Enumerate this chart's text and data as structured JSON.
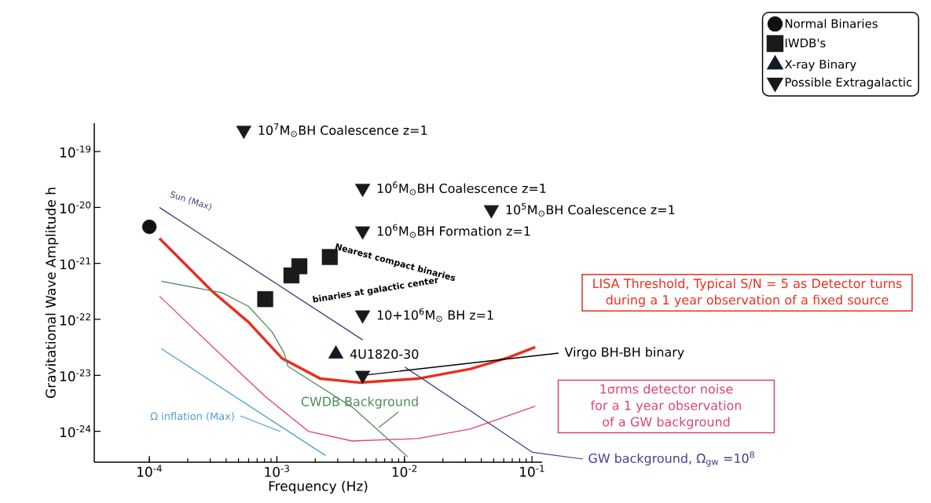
{
  "chart_data": {
    "type": "line",
    "xlabel": "Frequency (Hz)",
    "ylabel": "Gravitational Wave Amplitude h",
    "log": "xy",
    "legend": "top right",
    "xlim": [
      3.7e-05,
      0.12
    ],
    "ylim": [
      2.8e-25,
      3.2e-19
    ],
    "xticks": [
      {
        "value": 0.0001,
        "label": "10$^{-4}$"
      },
      {
        "value": 0.001,
        "label": "10$^{-3}$"
      },
      {
        "value": 0.01,
        "label": "10$^{-2}$"
      },
      {
        "value": 0.1,
        "label": "10$^{-1}$"
      }
    ],
    "yticks": [
      {
        "value": 1e-24,
        "label": "10$^{-24}$"
      },
      {
        "value": 1e-23,
        "label": "10$^{-23}$"
      },
      {
        "value": 1e-22,
        "label": "10$^{-22}$"
      },
      {
        "value": 1e-21,
        "label": "10$^{-21}$"
      },
      {
        "value": 1e-20,
        "label": "10$^{-20}$"
      },
      {
        "value": 1e-19,
        "label": "10$^{-19}$"
      }
    ],
    "series": [
      {
        "name": "Normal Binaries",
        "type": "scatter",
        "marker": "circle",
        "color": "#111111",
        "x": [
          0.0001
        ],
        "values": [
          4.5e-21
        ]
      },
      {
        "name": "IWDB's",
        "type": "scatter",
        "marker": "square",
        "color": "#1a1a1a",
        "x": [
          0.00081,
          0.0013,
          0.0015,
          0.0026
        ],
        "values": [
          2.3e-22,
          6.1e-22,
          8.9e-22,
          1.3e-21
        ]
      },
      {
        "name": "X-ray Binary",
        "type": "scatter",
        "marker": "triangle",
        "color": "#111827",
        "x": [
          0.0029
        ],
        "values": [
          2.4e-23
        ]
      },
      {
        "name": "Possible Extragalactic",
        "type": "scatter",
        "marker": "triangle_down",
        "color": "#1a1a1a",
        "x": [
          0.00055,
          0.0047,
          0.048,
          0.0047,
          0.0047,
          0.0047
        ],
        "values": [
          2.4e-19,
          2.2e-20,
          9.1e-21,
          3.8e-21,
          1.2e-22,
          1e-23
        ]
      },
      {
        "name": "LISA Threshold, Typical S/N = 5 as Detector turns during a 1 year observation of a fixed source",
        "marker": "none",
        "line_style": "solid",
        "color": "#e8301e",
        "x": [
          0.00012,
          0.00031,
          0.0006,
          0.0011,
          0.0022,
          0.0045,
          0.0127,
          0.033,
          0.066,
          0.106
        ],
        "values": [
          2.8e-21,
          3.2e-22,
          8.9e-23,
          2e-23,
          8.7e-24,
          7.4e-24,
          8.7e-24,
          1.3e-23,
          2.1e-23,
          3.2e-23
        ]
      },
      {
        "name": "1σrms detector noise for a 1 year observation of a GW background",
        "marker": "none",
        "line_style": "solid",
        "color": "#d9437a",
        "x": [
          0.00012,
          0.00041,
          0.00083,
          0.00176,
          0.0039,
          0.0127,
          0.033,
          0.106
        ],
        "values": [
          2.6e-22,
          1.8e-23,
          4e-24,
          1e-24,
          6.7e-25,
          7.4e-25,
          1.1e-24,
          2.8e-24
        ]
      },
      {
        "name": "Sun (Max)",
        "marker": "none",
        "line_style": "solid",
        "color": "#4b3a7a",
        "x": [
          0.00012,
          0.0047
        ],
        "values": [
          1e-20,
          4.3e-23
        ]
      },
      {
        "name": "GW background, Ω$_{gw}$ =10$^{8}$",
        "marker": "none",
        "line_style": "solid",
        "color": "#4a3d8f",
        "x": [
          0.0101,
          0.101
        ],
        "values": [
          1.4e-23,
          4.2e-25
        ]
      },
      {
        "name": "CWDB Background",
        "marker": "none",
        "line_style": "solid",
        "color": "#4f8a5a",
        "x": [
          0.000124,
          0.00037,
          0.0006,
          0.00092,
          0.00114,
          0.00122,
          0.0039,
          0.0106
        ],
        "values": [
          4.8e-22,
          3e-22,
          1.7e-22,
          5.9e-23,
          2.5e-23,
          1.45e-23,
          2.7e-24,
          3.5e-25
        ]
      },
      {
        "name": "Ω inflation (Max)",
        "marker": "none",
        "line_style": "solid",
        "color": "#4a9fd0",
        "x": [
          0.000124,
          0.0024
        ],
        "values": [
          3e-23,
          3.7e-25
        ]
      }
    ],
    "annotations": [
      {
        "text": "10$^{7}$M$_{⊙}$BH  Coalescence  z=1",
        "x": 0.00055,
        "y": 2.4e-19
      },
      {
        "text": "10$^{6}$M$_{⊙}$BH  Coalescence  z=1",
        "x": 0.0047,
        "y": 2.2e-20
      },
      {
        "text": "10$^{5}$M$_{⊙}$BH  Coalescence  z=1",
        "x": 0.048,
        "y": 9.1e-21
      },
      {
        "text": "10$^{6}$M$_{⊙}$BH  Formation  z=1",
        "x": 0.0047,
        "y": 3.8e-21
      },
      {
        "text": "10+10$^{6}$M$_{⊙}$ BH  z=1",
        "x": 0.0047,
        "y": 1.2e-22
      },
      {
        "text": "4U1820-30",
        "x": 0.0029,
        "y": 2.4e-23
      },
      {
        "text": "Virgo BH-BH binary",
        "x": 0.0047,
        "y": 1e-23
      },
      "Nearest compact binaries",
      "binaries at galactic center"
    ]
  }
}
